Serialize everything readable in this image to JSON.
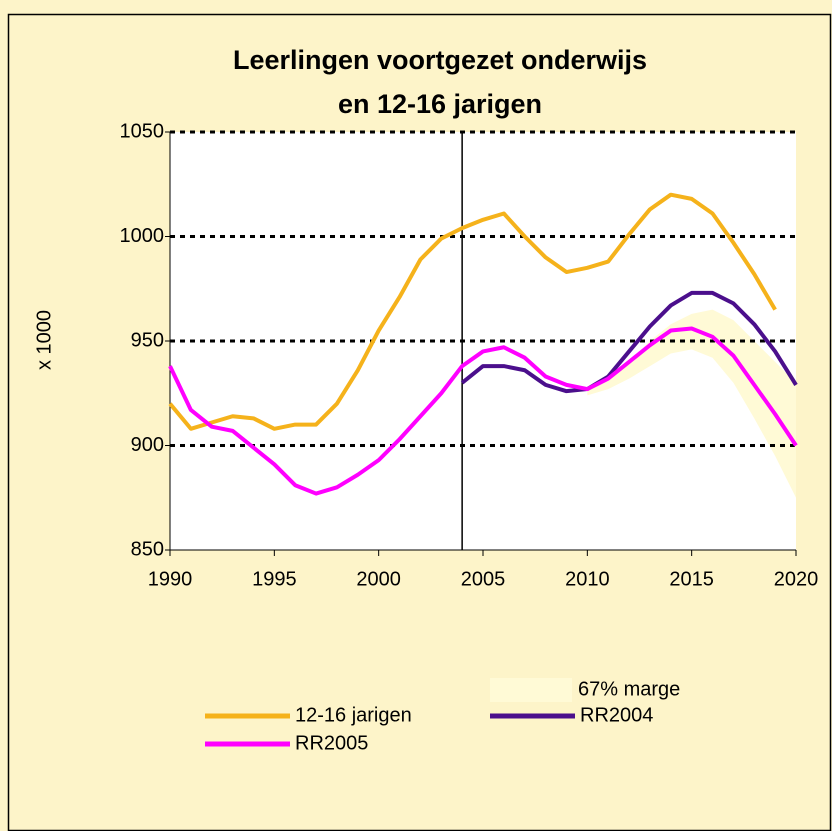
{
  "chart_data": {
    "type": "line",
    "title": [
      "Leerlingen voortgezet onderwijs",
      "en 12-16 jarigen"
    ],
    "y_label": "x 1000",
    "x": [
      1990,
      1991,
      1992,
      1993,
      1994,
      1995,
      1996,
      1997,
      1998,
      1999,
      2000,
      2001,
      2002,
      2003,
      2004,
      2005,
      2006,
      2007,
      2008,
      2009,
      2010,
      2011,
      2012,
      2013,
      2014,
      2015,
      2016,
      2017,
      2018,
      2019,
      2020
    ],
    "xlim": [
      1990,
      2020
    ],
    "xticks": [
      1990,
      1995,
      2000,
      2005,
      2010,
      2015,
      2020
    ],
    "ylim": [
      850,
      1050
    ],
    "yticks": [
      850,
      900,
      950,
      1000,
      1050
    ],
    "grid": true,
    "marker_line_x": 2004,
    "band": {
      "name": "67% marge",
      "color": "#fffad6",
      "lower": [
        null,
        null,
        null,
        null,
        null,
        null,
        null,
        null,
        null,
        null,
        null,
        null,
        null,
        null,
        null,
        null,
        null,
        null,
        null,
        null,
        924,
        927,
        932,
        938,
        944,
        946,
        942,
        930,
        913,
        895,
        875
      ],
      "upper": [
        null,
        null,
        null,
        null,
        null,
        null,
        null,
        null,
        null,
        null,
        null,
        null,
        null,
        null,
        null,
        null,
        null,
        null,
        null,
        null,
        927,
        933,
        940,
        950,
        958,
        963,
        965,
        960,
        950,
        940,
        930
      ]
    },
    "series": [
      {
        "name": "12-16 jarigen",
        "color": "#f5b21b",
        "values": [
          920,
          908,
          911,
          914,
          913,
          908,
          910,
          910,
          920,
          936,
          955,
          971,
          989,
          999,
          1004,
          1008,
          1011,
          1000,
          990,
          983,
          985,
          988,
          1001,
          1013,
          1020,
          1018,
          1011,
          997,
          982,
          965,
          null
        ]
      },
      {
        "name": "RR2004",
        "color": "#4b0f8c",
        "values": [
          null,
          null,
          null,
          null,
          null,
          null,
          null,
          null,
          null,
          null,
          null,
          null,
          null,
          null,
          930,
          938,
          938,
          936,
          929,
          926,
          927,
          933,
          945,
          957,
          967,
          973,
          973,
          968,
          958,
          945,
          929
        ]
      },
      {
        "name": "RR2005",
        "color": "#ff00ff",
        "values": [
          938,
          917,
          909,
          907,
          899,
          891,
          881,
          877,
          880,
          886,
          893,
          903,
          914,
          925,
          938,
          945,
          947,
          942,
          933,
          929,
          927,
          932,
          940,
          948,
          955,
          956,
          952,
          943,
          929,
          915,
          900
        ]
      }
    ]
  }
}
